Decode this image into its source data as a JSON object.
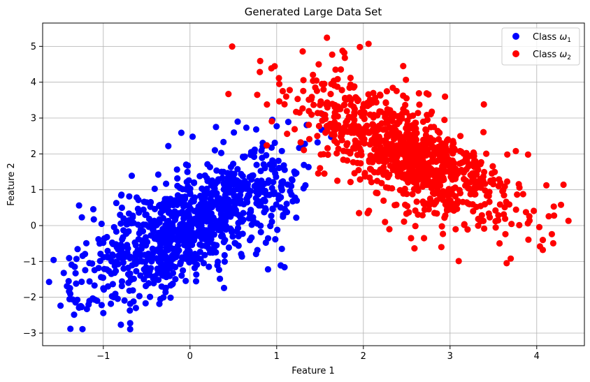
{
  "chart_data": {
    "type": "scatter",
    "title": "Generated Large Data Set",
    "xlabel": "Feature 1",
    "ylabel": "Feature 2",
    "xlim": [
      -1.7,
      4.55
    ],
    "ylim": [
      -3.35,
      5.65
    ],
    "xticks": [
      -1,
      0,
      1,
      2,
      3,
      4
    ],
    "xtick_labels": [
      "−1",
      "0",
      "1",
      "2",
      "3",
      "4"
    ],
    "yticks": [
      -3,
      -2,
      -1,
      0,
      1,
      2,
      3,
      4,
      5
    ],
    "ytick_labels": [
      "−3",
      "−2",
      "−1",
      "0",
      "1",
      "2",
      "3",
      "4",
      "5"
    ],
    "grid": true,
    "legend_position": "top-right",
    "series": [
      {
        "name": "Class ω₁",
        "legend_base": "Class ",
        "legend_symbol": "ω",
        "legend_sub": "1",
        "color": "#0000ff",
        "distribution": {
          "mean": [
            0,
            0
          ],
          "cov": [
            [
              0.36,
              0.42
            ],
            [
              0.42,
              1.0
            ]
          ]
        },
        "count": 1000,
        "points": [
          [
            -1.38,
            -2.88
          ],
          [
            -0.69,
            -2.89
          ],
          [
            -0.69,
            -2.72
          ],
          [
            -1.4,
            -1.55
          ],
          [
            -1.33,
            -1.15
          ],
          [
            -1.32,
            -1.33
          ],
          [
            -1.3,
            -2.07
          ],
          [
            -1.25,
            -2.27
          ],
          [
            -1.17,
            -2.2
          ],
          [
            -1.0,
            -2.44
          ],
          [
            -1.02,
            0.05
          ],
          [
            -0.85,
            0.63
          ],
          [
            -0.79,
            0.86
          ],
          [
            -0.9,
            -1.97
          ],
          [
            -1.0,
            -1.75
          ],
          [
            -1.13,
            -1.06
          ],
          [
            0.9,
            -1.22
          ],
          [
            1.09,
            -1.16
          ],
          [
            1.06,
            -0.65
          ],
          [
            0.95,
            2.95
          ],
          [
            1.0,
            2.77
          ],
          [
            1.06,
            2.08
          ],
          [
            0.65,
            2.73
          ],
          [
            -0.25,
            2.22
          ],
          [
            -0.1,
            2.59
          ],
          [
            0.03,
            2.48
          ],
          [
            0.3,
            2.75
          ],
          [
            0.55,
            2.9
          ]
        ]
      },
      {
        "name": "Class ω₂",
        "legend_base": "Class ",
        "legend_symbol": "ω",
        "legend_sub": "2",
        "color": "#ff0000",
        "distribution": {
          "mean": [
            2.5,
            2
          ],
          "cov": [
            [
              0.36,
              -0.42
            ],
            [
              -0.42,
              1.0
            ]
          ]
        },
        "count": 1000,
        "points": [
          [
            0.81,
            4.59
          ],
          [
            1.58,
            5.24
          ],
          [
            1.96,
            4.98
          ],
          [
            2.06,
            5.07
          ],
          [
            1.3,
            4.86
          ],
          [
            1.64,
            4.77
          ],
          [
            1.78,
            4.82
          ],
          [
            2.46,
            4.45
          ],
          [
            1.03,
            3.95
          ],
          [
            1.07,
            3.75
          ],
          [
            1.15,
            3.78
          ],
          [
            4.28,
            0.58
          ],
          [
            4.2,
            0.28
          ],
          [
            4.07,
            -0.4
          ],
          [
            4.07,
            -0.68
          ],
          [
            3.7,
            -0.92
          ],
          [
            3.1,
            -0.99
          ],
          [
            2.9,
            -0.6
          ],
          [
            3.39,
            3.38
          ],
          [
            3.9,
            1.98
          ],
          [
            1.12,
            2.56
          ],
          [
            1.37,
            2.81
          ],
          [
            1.55,
            1.45
          ],
          [
            1.7,
            1.25
          ],
          [
            1.5,
            1.6
          ],
          [
            1.95,
            0.35
          ],
          [
            2.05,
            0.35
          ],
          [
            2.25,
            0.1
          ],
          [
            2.3,
            -0.1
          ],
          [
            2.55,
            -0.35
          ],
          [
            2.7,
            -0.35
          ]
        ]
      }
    ]
  }
}
